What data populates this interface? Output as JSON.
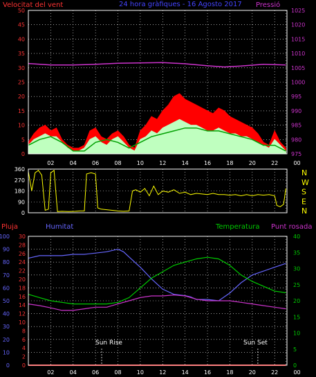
{
  "chart_data": [
    {
      "type": "line",
      "panel": "top",
      "title": "24 hora gràfiques - 16 Agosto 2017",
      "left_axis_label": "Velocitat del vent",
      "right_axis_label": "Pressió",
      "left_ticks": [
        "0",
        "5",
        "10",
        "15",
        "20",
        "25",
        "30",
        "35",
        "40",
        "45",
        "50"
      ],
      "right_ticks": [
        "975",
        "980",
        "985",
        "990",
        "995",
        "1000",
        "1005",
        "1010",
        "1015",
        "1020",
        "1025"
      ],
      "ylim_left": [
        0,
        50
      ],
      "ylim_right": [
        975,
        1025
      ],
      "x_ticks": [
        "02",
        "04",
        "06",
        "08",
        "10",
        "12",
        "14",
        "16",
        "18",
        "20",
        "22",
        "00"
      ],
      "xlim": [
        1,
        24.1
      ],
      "grid": true,
      "colors": {
        "gust": "#ff0000",
        "wind": "#bfffbf",
        "avg_wind": "#00a000",
        "pressure": "#cc33cc"
      },
      "series": [
        {
          "key": "pressure",
          "x": [
            1,
            3,
            5,
            7,
            9,
            11,
            13,
            15,
            17,
            18.5,
            20,
            22,
            24
          ],
          "values": [
            1006.5,
            1006,
            1006,
            1006.2,
            1006.6,
            1006.7,
            1006.8,
            1006.4,
            1005.7,
            1005.3,
            1005.6,
            1006.2,
            1006.0
          ]
        },
        {
          "key": "gust",
          "x": [
            1,
            1.5,
            2,
            2.5,
            3,
            3.5,
            4,
            4.5,
            5,
            5.5,
            6,
            6.5,
            7,
            7.5,
            8,
            8.5,
            9,
            9.5,
            10,
            10.5,
            11,
            11.5,
            12,
            12.5,
            13,
            13.5,
            14,
            14.5,
            15,
            15.5,
            16,
            16.5,
            17,
            17.5,
            18,
            18.5,
            19,
            19.5,
            20,
            20.5,
            21,
            21.5,
            22,
            22.5,
            23,
            23.5,
            24
          ],
          "values": [
            4,
            7,
            9,
            10,
            8,
            9,
            5,
            3,
            2,
            2,
            3,
            8,
            9,
            6,
            5,
            7,
            8,
            6,
            3,
            2,
            8,
            10,
            13,
            12,
            15,
            17,
            20,
            21,
            19,
            18,
            17,
            16,
            15,
            14,
            16,
            15,
            13,
            12,
            11,
            10,
            9,
            7,
            4,
            3,
            8,
            4,
            2
          ]
        },
        {
          "key": "wind",
          "x": [
            1,
            1.5,
            2,
            2.5,
            3,
            3.5,
            4,
            4.5,
            5,
            5.5,
            6,
            6.5,
            7,
            7.5,
            8,
            8.5,
            9,
            9.5,
            10,
            10.5,
            11,
            11.5,
            12,
            12.5,
            13,
            13.5,
            14,
            14.5,
            15,
            15.5,
            16,
            16.5,
            17,
            17.5,
            18,
            18.5,
            19,
            19.5,
            20,
            20.5,
            21,
            21.5,
            22,
            22.5,
            23,
            23.5,
            24
          ],
          "values": [
            3,
            5,
            6,
            7,
            6,
            6,
            4,
            2,
            1,
            1,
            2,
            5,
            6,
            4,
            3,
            5,
            6,
            4,
            2,
            1,
            5,
            6,
            8,
            7,
            9,
            10,
            11,
            12,
            11,
            10,
            10,
            9,
            8,
            8,
            9,
            8,
            7,
            7,
            6,
            6,
            5,
            4,
            3,
            2,
            5,
            3,
            1
          ]
        },
        {
          "key": "avg_wind",
          "x": [
            1,
            2,
            3,
            4,
            5,
            6,
            7,
            8,
            9,
            10,
            11,
            12,
            13,
            14,
            15,
            16,
            17,
            18,
            19,
            20,
            21,
            22,
            23,
            24
          ],
          "values": [
            3,
            5,
            6,
            4,
            1,
            1,
            4,
            5,
            4,
            2,
            4,
            6,
            7,
            8,
            9,
            9,
            8,
            8,
            7,
            6,
            5,
            3,
            3,
            1
          ]
        }
      ]
    },
    {
      "type": "line",
      "panel": "middle",
      "left_ticks": [
        "0",
        "90",
        "180",
        "270",
        "360"
      ],
      "ylim": [
        0,
        360
      ],
      "direction_labels": [
        "N",
        "W",
        "S",
        "E",
        "N"
      ],
      "xlim": [
        1,
        24.1
      ],
      "grid": true,
      "colors": {
        "direction": "#ffff00"
      },
      "series": [
        {
          "key": "direction",
          "x": [
            1,
            1.3,
            1.6,
            1.9,
            2.2,
            2.5,
            2.8,
            3,
            3.3,
            3.6,
            4,
            4.6,
            5.2,
            5.6,
            6,
            6.2,
            6.6,
            7,
            7.2,
            7.5,
            8,
            8.5,
            9,
            9.5,
            10,
            10.3,
            10.6,
            11,
            11.4,
            11.8,
            12.2,
            12.6,
            13,
            13.5,
            14,
            14.5,
            15,
            15.5,
            16,
            16.5,
            17,
            17.5,
            18,
            18.5,
            19,
            19.5,
            20,
            20.5,
            21,
            21.5,
            22,
            22.5,
            23,
            23.2,
            23.5,
            23.8,
            24
          ],
          "values": [
            340,
            180,
            330,
            350,
            310,
            20,
            30,
            330,
            350,
            10,
            12,
            10,
            12,
            15,
            15,
            320,
            330,
            320,
            40,
            30,
            25,
            20,
            15,
            12,
            15,
            180,
            190,
            170,
            200,
            140,
            220,
            150,
            180,
            170,
            190,
            160,
            170,
            150,
            160,
            155,
            150,
            160,
            150,
            150,
            145,
            150,
            140,
            150,
            140,
            150,
            145,
            150,
            140,
            60,
            50,
            70,
            200
          ]
        }
      ]
    },
    {
      "type": "line",
      "panel": "bottom",
      "legend": [
        "Pluja",
        "Humitat",
        "Temperatura",
        "Punt rosada"
      ],
      "humidity_ticks": [
        "0",
        "10",
        "20",
        "30",
        "40",
        "50",
        "60",
        "70",
        "80",
        "90",
        "100"
      ],
      "rain_ticks": [
        "0",
        "2",
        "4",
        "6",
        "8",
        "10",
        "12",
        "14",
        "16",
        "18",
        "20",
        "22",
        "24",
        "26",
        "28",
        "30"
      ],
      "temp_ticks": [
        "0",
        "5",
        "10",
        "15",
        "20",
        "25",
        "30",
        "35",
        "40"
      ],
      "ylim_humidity": [
        0,
        100
      ],
      "ylim_rain": [
        0,
        30
      ],
      "ylim_temp": [
        0,
        40
      ],
      "annotations": [
        {
          "text": "Sun Rise",
          "x": 7.55
        },
        {
          "text": "Sun Set",
          "x": 21.5
        }
      ],
      "x_ticks": [
        "02",
        "04",
        "06",
        "08",
        "10",
        "12",
        "14",
        "16",
        "18",
        "20",
        "22",
        "00"
      ],
      "xlim": [
        1,
        24.1
      ],
      "grid": true,
      "colors": {
        "rain": "#ff0000",
        "humidity": "#6666ff",
        "temperature": "#00cc00",
        "dewpoint": "#cc33cc"
      },
      "series": [
        {
          "key": "humidity",
          "x": [
            1,
            2,
            3,
            4,
            5,
            6,
            7,
            8,
            9,
            9.5,
            10,
            11,
            12,
            13,
            14,
            15,
            15.5,
            16,
            17,
            18,
            19,
            20,
            21,
            22,
            23,
            24
          ],
          "values": [
            83,
            85,
            85,
            85,
            86,
            86,
            87,
            88,
            90,
            88,
            84,
            76,
            67,
            59,
            55,
            54,
            53,
            51,
            51,
            50,
            56,
            64,
            70,
            73,
            76,
            79
          ]
        },
        {
          "key": "temperature",
          "x": [
            1,
            2,
            3,
            4,
            5,
            6,
            7,
            8,
            9,
            10,
            11,
            12,
            13,
            14,
            15,
            16,
            17,
            18,
            19,
            20,
            21,
            22,
            23,
            24
          ],
          "values": [
            22,
            21,
            20,
            19.5,
            19,
            19,
            19,
            19,
            19.5,
            21,
            24,
            27,
            29,
            31,
            32,
            33,
            33.5,
            33,
            31,
            28,
            26,
            24.5,
            23,
            22.5
          ]
        },
        {
          "key": "dewpoint",
          "x": [
            1,
            2,
            3,
            4,
            5,
            6,
            7,
            8,
            9,
            10,
            11,
            12,
            13,
            14,
            15,
            16,
            17,
            18,
            19,
            20,
            21,
            22,
            23,
            24
          ],
          "values": [
            19,
            18.5,
            17.8,
            17,
            17,
            17.5,
            18,
            18,
            19,
            20,
            21,
            21.5,
            21.5,
            21.8,
            21.5,
            20.5,
            20,
            20,
            20,
            19.5,
            19,
            18.5,
            18,
            17.5
          ]
        },
        {
          "key": "rain",
          "x": [
            1,
            24
          ],
          "values": [
            0,
            0
          ]
        }
      ]
    }
  ]
}
